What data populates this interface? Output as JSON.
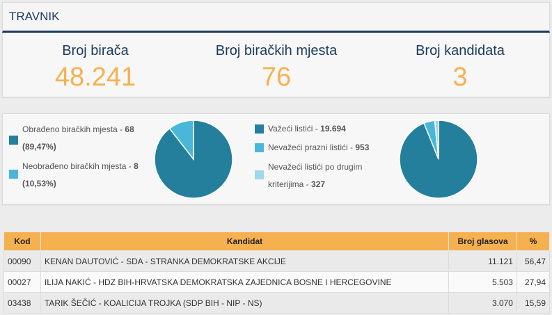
{
  "header": {
    "title": "TRAVNIK"
  },
  "stats": [
    {
      "label": "Broj birača",
      "value": "48.241"
    },
    {
      "label": "Broj biračkih mjesta",
      "value": "76"
    },
    {
      "label": "Broj kandidata",
      "value": "3"
    }
  ],
  "colors": {
    "primary": "#237f9c",
    "light": "#4bb7d8",
    "lighter": "#9fd7ea",
    "accent": "#f5b150",
    "navy": "#1b3a5c"
  },
  "chart_data": [
    {
      "type": "pie",
      "series": [
        {
          "label": "Obrađeno biračkih mjesta",
          "value_text": "68 (89,47%)",
          "value": 68,
          "percent": 89.47
        },
        {
          "label": "Neobrađeno biračkih mjesta",
          "value_text": "8 (10,53%)",
          "value": 8,
          "percent": 10.53
        }
      ]
    },
    {
      "type": "pie",
      "series": [
        {
          "label": "Važeći listići",
          "value_text": "19.694",
          "value": 19694
        },
        {
          "label": "Nevažeći prazni listići",
          "value_text": "953",
          "value": 953
        },
        {
          "label": "Nevažeći listići po drugim kriterijima",
          "value_text": "327",
          "value": 327
        }
      ]
    }
  ],
  "table": {
    "headers": [
      "Kod",
      "Kandidat",
      "Broj glasova",
      "%"
    ],
    "rows": [
      {
        "kod": "00090",
        "kandidat": "KENAN DAUTOVIĆ - SDA - STRANKA DEMOKRATSKE AKCIJE",
        "glasova": "11.121",
        "pct": "56,47"
      },
      {
        "kod": "00027",
        "kandidat": "ILIJA NAKIĆ - HDZ BIH-HRVATSKA DEMOKRATSKA ZAJEDNICA BOSNE I HERCEGOVINE",
        "glasova": "5.503",
        "pct": "27,94"
      },
      {
        "kod": "03438",
        "kandidat": "TARIK ŠEČIĆ - KOALICIJA TROJKA (SDP BIH - NIP - NS)",
        "glasova": "3.070",
        "pct": "15,59"
      }
    ]
  }
}
